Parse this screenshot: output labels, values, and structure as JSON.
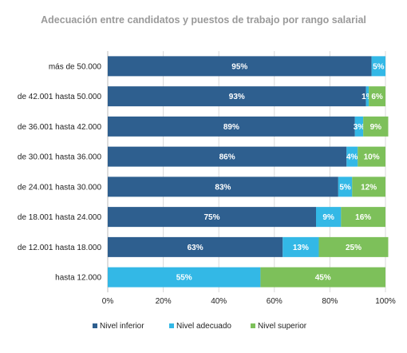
{
  "chart_data": {
    "type": "bar",
    "orientation": "horizontal",
    "stacked": true,
    "title": "Adecuación entre candidatos y puestos de trabajo por rango salarial",
    "categories": [
      "más de 50.000",
      "de 42.001 hasta 50.000",
      "de 36.001 hasta 42.000",
      "de 30.001 hasta 36.000",
      "de 24.001 hasta 30.000",
      "de 18.001 hasta 24.000",
      "de 12.001 hasta 18.000",
      "hasta 12.000"
    ],
    "series": [
      {
        "name": "Nivel inferior",
        "color": "#2e5f8f",
        "values": [
          95,
          93,
          89,
          86,
          83,
          75,
          63,
          0
        ]
      },
      {
        "name": "Nivel adecuado",
        "color": "#33b8e6",
        "values": [
          5,
          1,
          3,
          4,
          5,
          9,
          13,
          55
        ]
      },
      {
        "name": "Nivel superior",
        "color": "#7dc05a",
        "values": [
          0,
          6,
          9,
          10,
          12,
          16,
          25,
          45
        ]
      }
    ],
    "xlim": [
      0,
      100
    ],
    "xticks": [
      "0%",
      "20%",
      "40%",
      "60%",
      "80%",
      "100%"
    ],
    "value_suffix": "%",
    "grid": true,
    "legend_position": "bottom"
  }
}
